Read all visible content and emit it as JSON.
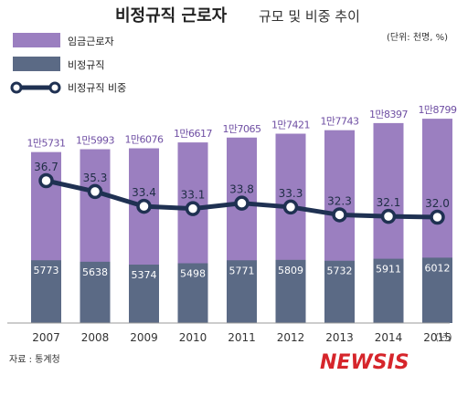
{
  "title_bold": "비정규직 근로자",
  "title_rest": "규모 및 비중 추이",
  "unit_note": "(단위: 천명, %)",
  "source": "자료 : 통계청",
  "logo_text": "NEWSIS",
  "year_unit": "(년)",
  "legend": [
    {
      "label": "임금근로자",
      "color": "#9b7fc0"
    },
    {
      "label": "비정규직",
      "color": "#5b6a85"
    },
    {
      "label": "비정규직 비중",
      "color": "#1f3152"
    }
  ],
  "chart_data": {
    "type": "bar",
    "categories": [
      "2007",
      "2008",
      "2009",
      "2010",
      "2011",
      "2012",
      "2013",
      "2014",
      "2015"
    ],
    "series": [
      {
        "name": "임금근로자",
        "color": "#9b7fc0",
        "values": [
          15731,
          15993,
          16076,
          16617,
          17065,
          17421,
          17743,
          18397,
          18799
        ],
        "labels": [
          "1만5731",
          "1만5993",
          "1만6076",
          "1만6617",
          "1만7065",
          "1만7421",
          "1만7743",
          "1만8397",
          "1만8799"
        ]
      },
      {
        "name": "비정규직",
        "color": "#5b6a85",
        "values": [
          5773,
          5638,
          5374,
          5498,
          5771,
          5809,
          5732,
          5911,
          6012
        ],
        "labels": [
          "5773",
          "5638",
          "5374",
          "5498",
          "5771",
          "5809",
          "5732",
          "5911",
          "6012"
        ]
      },
      {
        "name": "비정규직 비중",
        "type": "line",
        "color": "#1f3152",
        "values": [
          36.7,
          35.3,
          33.4,
          33.1,
          33.8,
          33.3,
          32.3,
          32.1,
          32.0
        ],
        "labels": [
          "36.7",
          "35.3",
          "33.4",
          "33.1",
          "33.8",
          "33.3",
          "32.3",
          "32.1",
          "32.0"
        ]
      }
    ],
    "legend_position": "top-left",
    "grid": false
  }
}
